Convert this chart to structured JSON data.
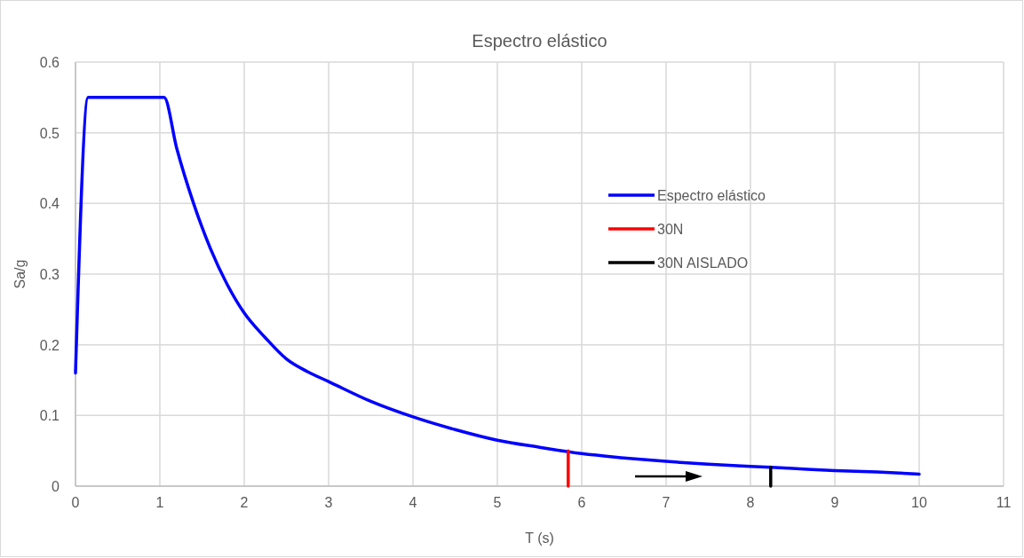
{
  "chart_data": {
    "type": "line",
    "title": "Espectro elástico",
    "xlabel": "T (s)",
    "ylabel": "Sa/g",
    "xlim": [
      0,
      11
    ],
    "xticks": [
      0,
      1,
      2,
      3,
      4,
      5,
      6,
      7,
      8,
      9,
      10,
      11
    ],
    "ylim": [
      0,
      0.6
    ],
    "yticks": [
      0,
      0.1,
      0.2,
      0.3,
      0.4,
      0.5,
      0.6
    ],
    "grid": true,
    "legend": "right",
    "line_style": "solid",
    "series": [
      {
        "name": "Espectro elástico",
        "color": "#0000ff",
        "x": [
          0,
          0.15,
          1.05,
          1.2,
          1.4,
          1.6,
          1.8,
          2,
          2.25,
          2.5,
          2.75,
          3,
          3.5,
          4,
          4.5,
          5,
          5.5,
          6,
          6.5,
          7,
          7.5,
          8,
          8.5,
          9,
          9.5,
          10
        ],
        "values": [
          0.16,
          0.55,
          0.55,
          0.478,
          0.4,
          0.336,
          0.285,
          0.245,
          0.21,
          0.18,
          0.162,
          0.148,
          0.12,
          0.098,
          0.08,
          0.065,
          0.055,
          0.046,
          0.04,
          0.035,
          0.031,
          0.028,
          0.025,
          0.022,
          0.02,
          0.017
        ]
      },
      {
        "name": "30N",
        "color": "#ff0000",
        "x": [
          5.84,
          5.84
        ],
        "values": [
          0,
          0.05
        ]
      },
      {
        "name": "30N AISLADO",
        "color": "#000000",
        "x": [
          8.24,
          8.24
        ],
        "values": [
          0,
          0.027
        ]
      }
    ]
  }
}
